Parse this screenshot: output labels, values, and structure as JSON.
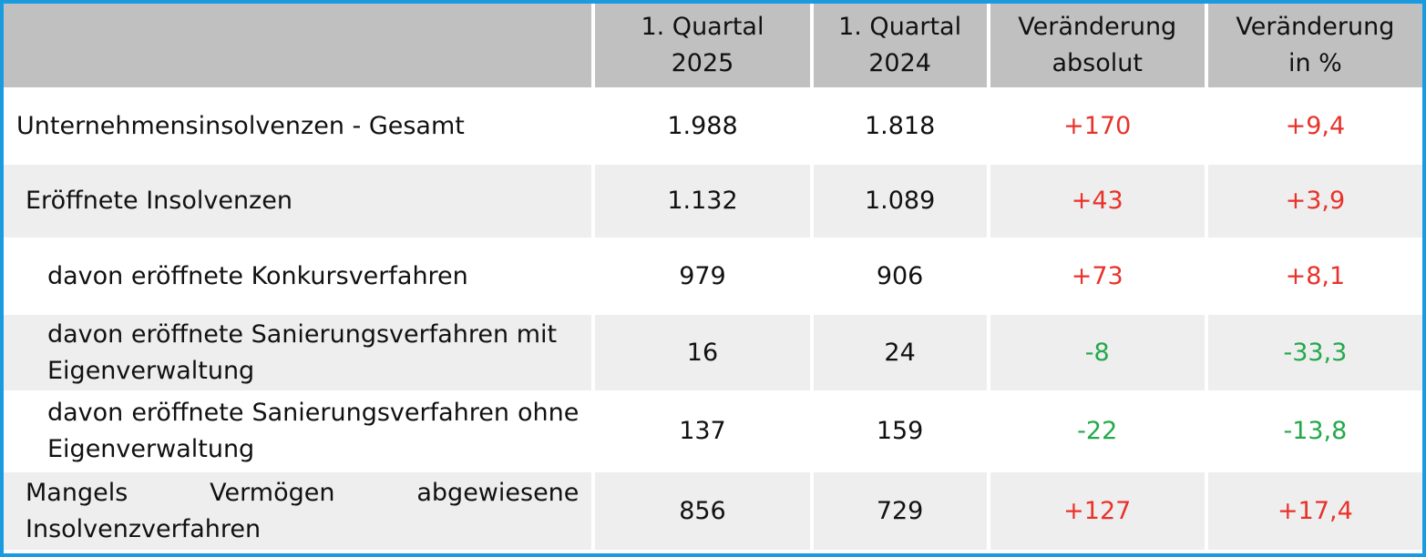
{
  "table": {
    "header": {
      "label": "",
      "q2025": [
        "1. Quartal",
        "2025"
      ],
      "q2024": [
        "1. Quartal",
        "2024"
      ],
      "abs": [
        "Veränderung",
        "absolut"
      ],
      "pct": [
        "Veränderung",
        "in %"
      ]
    },
    "rows": [
      {
        "label": "Unternehmensinsolvenzen - Gesamt",
        "q2025": "1.988",
        "q2024": "1.818",
        "abs": "+170",
        "pct": "+9,4"
      },
      {
        "label": "Eröffnete Insolvenzen",
        "q2025": "1.132",
        "q2024": "1.089",
        "abs": "+43",
        "pct": "+3,9"
      },
      {
        "label": "davon eröffnete Konkursverfahren",
        "q2025": "979",
        "q2024": "906",
        "abs": "+73",
        "pct": "+8,1"
      },
      {
        "label": "davon eröffnete Sanierungsverfahren mit Eigenverwaltung",
        "q2025": "16",
        "q2024": "24",
        "abs": "-8",
        "pct": "-33,3"
      },
      {
        "label": "davon eröffnete Sanierungsverfahren ohne Eigenverwaltung",
        "q2025": "137",
        "q2024": "159",
        "abs": "-22",
        "pct": "-13,8"
      },
      {
        "label": "Mangels Vermögen abgewiesene Insolvenzverfahren",
        "q2025": "856",
        "q2024": "729",
        "abs": "+127",
        "pct": "+17,4"
      }
    ],
    "colors": {
      "positive": "#e8322a",
      "negative": "#22a94a",
      "header_bg": "#c0c0c0",
      "alt_bg": "#eeeeee",
      "border": "#1a9be0"
    }
  }
}
